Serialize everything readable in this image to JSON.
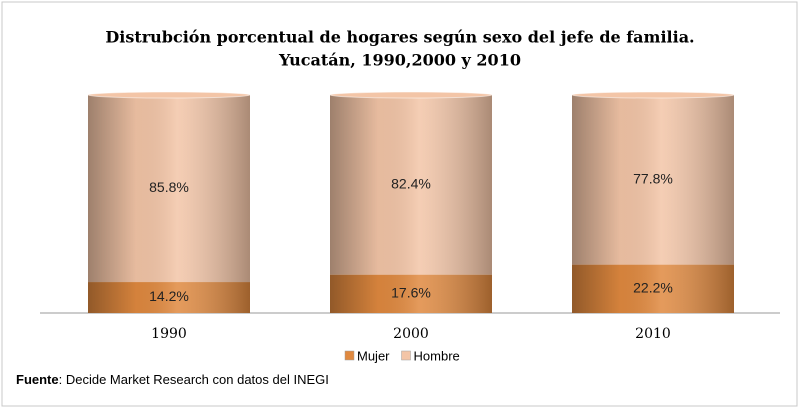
{
  "chart_data": {
    "type": "bar",
    "stacked": true,
    "title": [
      "Distrubción porcentual de hogares según sexo del jefe de familia.",
      "Yucatán, 1990,2000 y 2010"
    ],
    "categories": [
      "1990",
      "2000",
      "2010"
    ],
    "series": [
      {
        "name": "Mujer",
        "color": "#e0893f",
        "values": [
          14.2,
          17.6,
          22.2
        ],
        "value_labels": [
          "14.2%",
          "17.6%",
          "22.2%"
        ]
      },
      {
        "name": "Hombre",
        "color": "#f3c5a7",
        "values": [
          85.8,
          82.4,
          77.8
        ],
        "value_labels": [
          "85.8%",
          "82.4%",
          "77.8%"
        ]
      }
    ],
    "ylim": [
      0,
      100
    ],
    "source_label": "Fuente",
    "source_text": ": Decide Market Research con datos del INEGI"
  }
}
